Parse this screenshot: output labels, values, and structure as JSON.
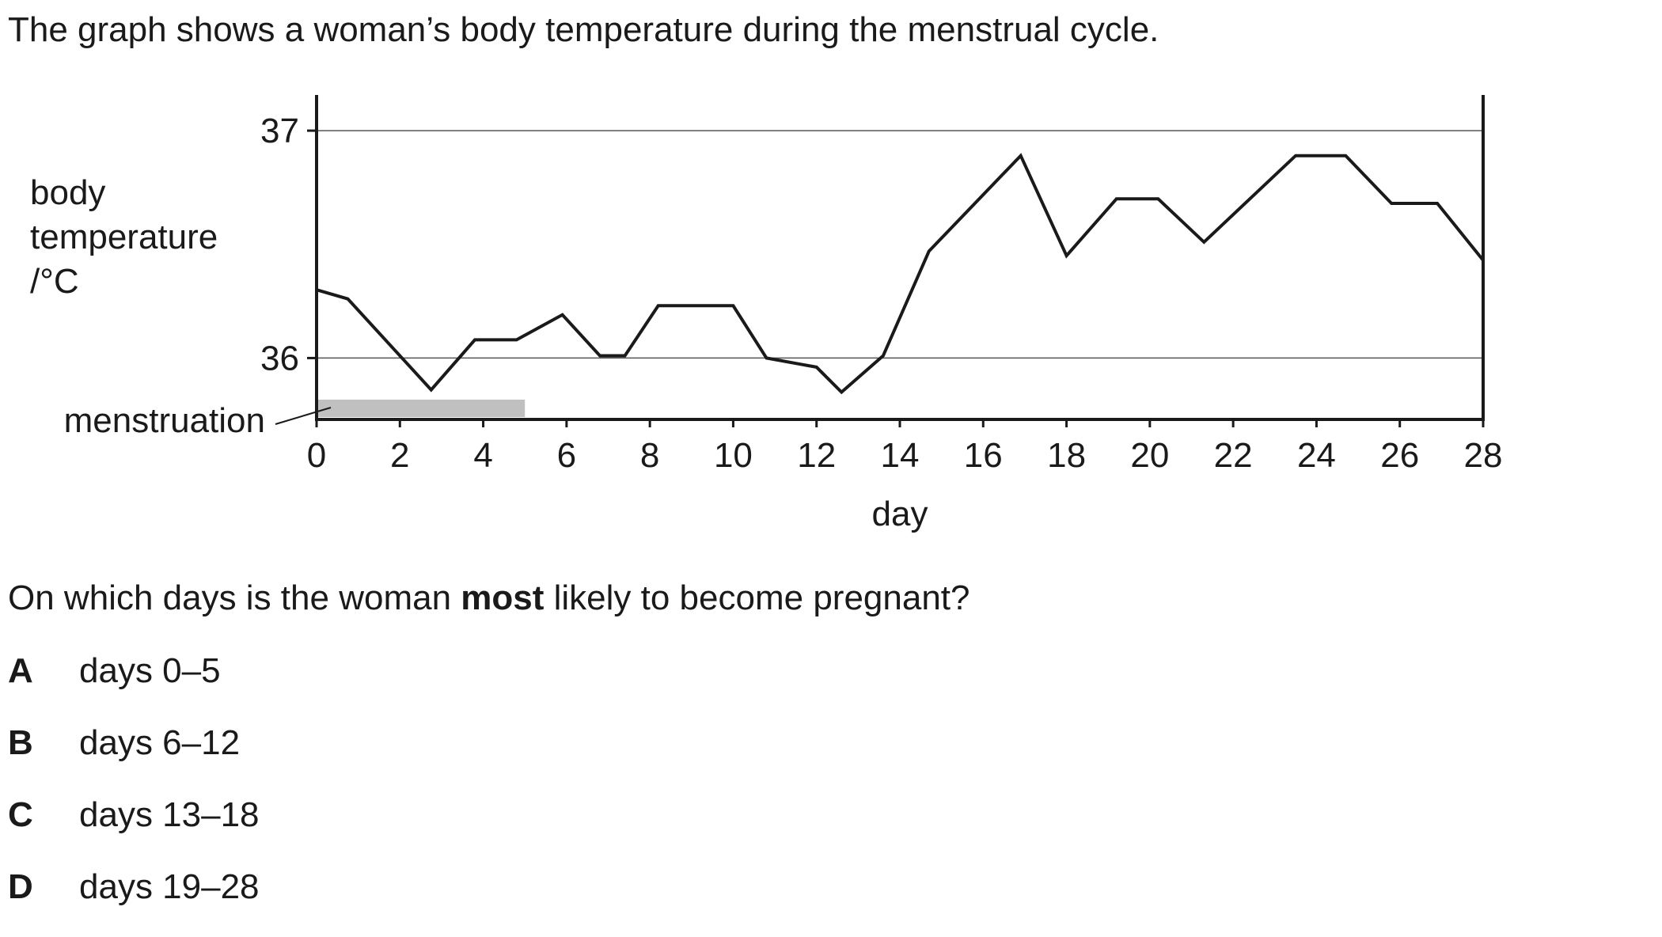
{
  "intro": {
    "text": "The graph shows a woman’s body temperature during the menstrual cycle."
  },
  "chart_data": {
    "type": "line",
    "ylabel_lines": [
      "body",
      "temperature",
      "/°C"
    ],
    "xlabel": "day",
    "xlim": [
      0,
      28
    ],
    "ylim": [
      35.73,
      37.15
    ],
    "x_ticks": [
      0,
      2,
      4,
      6,
      8,
      10,
      12,
      14,
      16,
      18,
      20,
      22,
      24,
      26,
      28
    ],
    "y_ticks": [
      36,
      37
    ],
    "gridlines_y": [
      36,
      37
    ],
    "series": [
      {
        "x": [
          0,
          0.75,
          2.75,
          3.8,
          4.8,
          5.9,
          6.8,
          7.4,
          8.2,
          9.2,
          10,
          10.8,
          12,
          12.6,
          13.6,
          14.7,
          16.9,
          18,
          19.2,
          20.2,
          21.3,
          22.4,
          23.5,
          24.7,
          25.8,
          26.9,
          28
        ],
        "y": [
          36.3,
          36.26,
          35.86,
          36.08,
          36.08,
          36.19,
          36.01,
          36.01,
          36.23,
          36.23,
          36.23,
          36.0,
          35.96,
          35.85,
          36.01,
          36.47,
          36.89,
          36.45,
          36.7,
          36.7,
          36.51,
          36.7,
          36.89,
          36.89,
          36.68,
          36.68,
          36.43
        ]
      }
    ],
    "annotation": {
      "label": "menstruation",
      "start_day": 0,
      "end_day": 5,
      "fill": "#c0c0c0"
    },
    "line_color": "#1a1a1a",
    "grid_color": "#555555"
  },
  "question": {
    "prefix": "On which days is the woman ",
    "emphasis": "most",
    "suffix": " likely to become pregnant?"
  },
  "options": [
    {
      "letter": "A",
      "text": "days 0–5"
    },
    {
      "letter": "B",
      "text": "days 6–12"
    },
    {
      "letter": "C",
      "text": "days 13–18"
    },
    {
      "letter": "D",
      "text": "days 19–28"
    }
  ]
}
